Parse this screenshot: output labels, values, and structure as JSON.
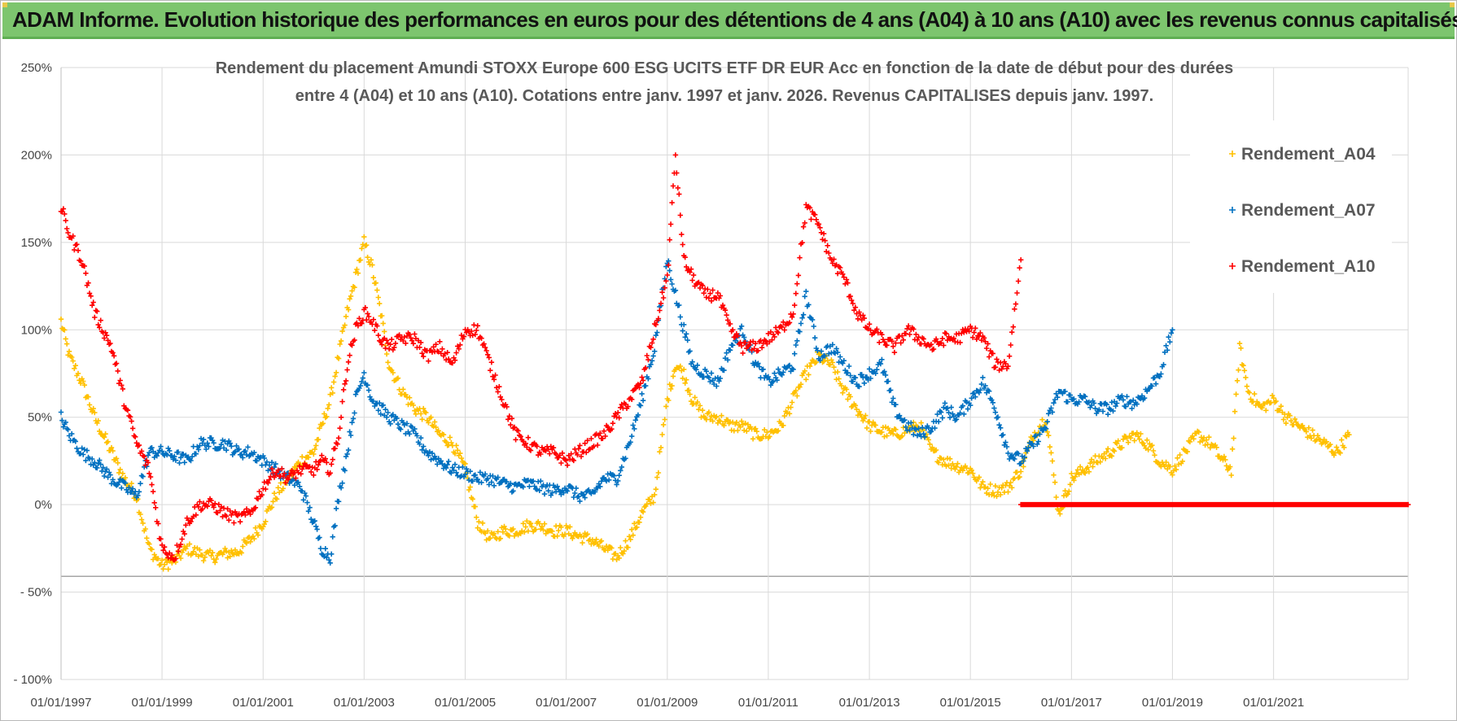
{
  "banner": {
    "title": "ADAM Informe. Evolution historique des performances en euros pour des détentions de 4 ans (A04) à 10 ans (A10) avec les revenus connus capitalisés"
  },
  "colors": {
    "banner_bg": "#7dc56e",
    "A04": "#ffc000",
    "A07": "#0070c0",
    "A10": "#ff0000",
    "grid": "#d9d9d9"
  },
  "chart_data": {
    "type": "scatter",
    "title_line1": "Rendement du placement Amundi STOXX Europe 600 ESG UCITS ETF DR EUR Acc en fonction de la date de début pour des durées",
    "title_line2": "entre 4 (A04) et 10 ans (A10).  Cotations entre janv. 1997 et janv. 2026. Revenus CAPITALISES depuis janv. 1997.",
    "marker": "+",
    "ylim": [
      -100,
      250
    ],
    "xlim": [
      "01/01/1997",
      "2023-09-01"
    ],
    "grid": true,
    "legend_position": "right",
    "y_ticks": [
      {
        "value": 250,
        "label": "250%"
      },
      {
        "value": 200,
        "label": "200%"
      },
      {
        "value": 150,
        "label": "150%"
      },
      {
        "value": 100,
        "label": "100%"
      },
      {
        "value": 50,
        "label": "50%"
      },
      {
        "value": 0,
        "label": "0%"
      },
      {
        "value": -50,
        "label": "- 50%"
      },
      {
        "value": -100,
        "label": "- 100%"
      }
    ],
    "x_ticks": [
      {
        "value": "1997-01-01",
        "label": "01/01/1997"
      },
      {
        "value": "1999-01-01",
        "label": "01/01/1999"
      },
      {
        "value": "2001-01-01",
        "label": "01/01/2001"
      },
      {
        "value": "2003-01-01",
        "label": "01/01/2003"
      },
      {
        "value": "2005-01-01",
        "label": "01/01/2005"
      },
      {
        "value": "2007-01-01",
        "label": "01/01/2007"
      },
      {
        "value": "2009-01-01",
        "label": "01/01/2009"
      },
      {
        "value": "2011-01-01",
        "label": "01/01/2011"
      },
      {
        "value": "2013-01-01",
        "label": "01/01/2013"
      },
      {
        "value": "2015-01-01",
        "label": "01/01/2015"
      },
      {
        "value": "2017-01-01",
        "label": "01/01/2017"
      },
      {
        "value": "2019-01-01",
        "label": "01/01/2019"
      },
      {
        "value": "2021-01-01",
        "label": "01/01/2021"
      }
    ],
    "series": [
      {
        "name": "Rendement_A04",
        "color": "#ffc000",
        "segments": [
          {
            "x": [
              "1997-01-01",
              "1997-03-01",
              "1997-06-01",
              "1997-09-01",
              "1998-01-01",
              "1998-04-01",
              "1998-07-01",
              "1998-10-01",
              "1999-01-01",
              "1999-04-01",
              "1999-07-01",
              "1999-10-01",
              "2000-01-01",
              "2000-04-01",
              "2000-07-01",
              "2000-10-01",
              "2001-01-01",
              "2001-04-01",
              "2001-07-01",
              "2001-10-01",
              "2002-01-01",
              "2002-03-01",
              "2002-05-01",
              "2002-07-01",
              "2002-09-01",
              "2002-11-01",
              "2003-01-01",
              "2003-03-01",
              "2003-05-01",
              "2003-07-01",
              "2003-10-01",
              "2004-01-01",
              "2004-04-01",
              "2004-07-01",
              "2004-10-01",
              "2005-01-01",
              "2005-04-01",
              "2005-07-01",
              "2005-10-01",
              "2006-01-01",
              "2006-04-01",
              "2006-07-01",
              "2006-10-01",
              "2007-01-01",
              "2007-04-01",
              "2007-07-01",
              "2007-10-01",
              "2008-01-01",
              "2008-04-01",
              "2008-07-01",
              "2008-10-01",
              "2009-01-01",
              "2009-03-01",
              "2009-05-01",
              "2009-07-01",
              "2009-10-01",
              "2010-01-01",
              "2010-04-01",
              "2010-07-01",
              "2010-10-01",
              "2011-01-01",
              "2011-04-01",
              "2011-07-01",
              "2011-10-01",
              "2012-01-01",
              "2012-04-01",
              "2012-07-01",
              "2012-10-01",
              "2013-01-01",
              "2013-04-01",
              "2013-07-01",
              "2013-10-01",
              "2014-01-01",
              "2014-04-01",
              "2014-07-01",
              "2014-10-01",
              "2015-01-01",
              "2015-04-01",
              "2015-07-01",
              "2015-10-01",
              "2016-01-01",
              "2016-04-01",
              "2016-07-01",
              "2016-10-01",
              "2017-01-01",
              "2017-04-01",
              "2017-07-01",
              "2017-10-01",
              "2018-01-01",
              "2018-04-01",
              "2018-07-01",
              "2018-10-01",
              "2019-01-01",
              "2019-04-01",
              "2019-07-01",
              "2019-10-01",
              "2020-01-01",
              "2020-03-01",
              "2020-05-01",
              "2020-07-01",
              "2020-10-01",
              "2021-01-01",
              "2021-04-01",
              "2021-07-01",
              "2021-10-01",
              "2022-01-01",
              "2022-04-01",
              "2022-07-01"
            ],
            "y": [
              105,
              85,
              70,
              50,
              30,
              15,
              5,
              -25,
              -35,
              -32,
              -25,
              -28,
              -30,
              -28,
              -27,
              -20,
              -10,
              5,
              15,
              25,
              30,
              45,
              60,
              85,
              110,
              130,
              150,
              135,
              110,
              80,
              65,
              55,
              50,
              40,
              35,
              20,
              -10,
              -20,
              -15,
              -15,
              -12,
              -12,
              -15,
              -15,
              -18,
              -20,
              -25,
              -30,
              -20,
              -5,
              5,
              60,
              80,
              75,
              60,
              50,
              50,
              45,
              45,
              40,
              40,
              45,
              60,
              75,
              85,
              80,
              65,
              55,
              45,
              42,
              40,
              43,
              45,
              30,
              25,
              22,
              20,
              10,
              8,
              10,
              20,
              40,
              50,
              -5,
              15,
              20,
              25,
              30,
              35,
              40,
              35,
              25,
              20,
              30,
              40,
              35,
              25,
              20,
              90,
              65,
              55,
              60,
              50,
              45,
              40,
              35,
              30,
              40
            ]
          }
        ]
      },
      {
        "name": "Rendement_A07",
        "color": "#0070c0",
        "segments": [
          {
            "x": [
              "1997-01-01",
              "1997-03-01",
              "1997-06-01",
              "1997-09-01",
              "1998-01-01",
              "1998-04-01",
              "1998-07-01",
              "1998-10-01",
              "1999-01-01",
              "1999-04-01",
              "1999-07-01",
              "1999-10-01",
              "2000-01-01",
              "2000-04-01",
              "2000-07-01",
              "2000-10-01",
              "2001-01-01",
              "2001-04-01",
              "2001-07-01",
              "2001-10-01",
              "2002-01-01",
              "2002-03-01",
              "2002-05-01",
              "2002-07-01",
              "2002-09-01",
              "2002-11-01",
              "2003-01-01",
              "2003-03-01",
              "2003-05-01",
              "2003-07-01",
              "2003-10-01",
              "2004-01-01",
              "2004-04-01",
              "2004-07-01",
              "2004-10-01",
              "2005-01-01",
              "2005-04-01",
              "2005-07-01",
              "2005-10-01",
              "2006-01-01",
              "2006-04-01",
              "2006-07-01",
              "2006-10-01",
              "2007-01-01",
              "2007-04-01",
              "2007-07-01",
              "2007-10-01",
              "2008-01-01",
              "2008-04-01",
              "2008-07-01",
              "2008-10-01",
              "2009-01-01",
              "2009-03-01",
              "2009-05-01",
              "2009-07-01",
              "2009-10-01",
              "2010-01-01",
              "2010-04-01",
              "2010-07-01",
              "2010-10-01",
              "2011-01-01",
              "2011-04-01",
              "2011-07-01",
              "2011-10-01",
              "2012-01-01",
              "2012-04-01",
              "2012-07-01",
              "2012-10-01",
              "2013-01-01",
              "2013-04-01",
              "2013-07-01",
              "2013-10-01",
              "2014-01-01",
              "2014-04-01",
              "2014-07-01",
              "2014-10-01",
              "2015-01-01",
              "2015-04-01",
              "2015-07-01",
              "2015-10-01",
              "2016-01-01",
              "2016-04-01",
              "2016-07-01",
              "2016-10-01",
              "2017-01-01",
              "2017-04-01",
              "2017-07-01",
              "2017-10-01",
              "2018-01-01",
              "2018-04-01",
              "2018-07-01",
              "2018-10-01",
              "2019-01-01"
            ],
            "y": [
              50,
              40,
              30,
              25,
              15,
              10,
              5,
              30,
              30,
              28,
              25,
              35,
              35,
              35,
              30,
              30,
              25,
              20,
              15,
              10,
              -10,
              -25,
              -30,
              5,
              30,
              60,
              75,
              60,
              55,
              50,
              45,
              40,
              30,
              25,
              20,
              18,
              15,
              15,
              12,
              10,
              12,
              10,
              8,
              10,
              5,
              5,
              15,
              15,
              35,
              60,
              90,
              140,
              120,
              100,
              80,
              75,
              70,
              90,
              100,
              80,
              70,
              75,
              80,
              120,
              85,
              90,
              80,
              70,
              75,
              80,
              55,
              45,
              40,
              45,
              55,
              50,
              60,
              70,
              55,
              30,
              25,
              35,
              45,
              65,
              60,
              60,
              55,
              55,
              60,
              58,
              65,
              75,
              100
            ]
          }
        ]
      },
      {
        "name": "Rendement_A10",
        "color": "#ff0000",
        "segments": [
          {
            "x": [
              "1997-01-01",
              "1997-03-01",
              "1997-06-01",
              "1997-09-01",
              "1998-01-01",
              "1998-04-01",
              "1998-07-01",
              "1998-10-01",
              "1999-01-01",
              "1999-04-01",
              "1999-07-01",
              "1999-10-01",
              "2000-01-01",
              "2000-04-01",
              "2000-07-01",
              "2000-10-01",
              "2001-01-01",
              "2001-04-01",
              "2001-07-01",
              "2001-10-01",
              "2002-01-01",
              "2002-03-01",
              "2002-05-01",
              "2002-07-01",
              "2002-09-01",
              "2002-11-01",
              "2003-01-01",
              "2003-03-01",
              "2003-05-01",
              "2003-07-01",
              "2003-10-01",
              "2004-01-01",
              "2004-04-01",
              "2004-07-01",
              "2004-10-01",
              "2005-01-01",
              "2005-04-01",
              "2005-07-01",
              "2005-10-01",
              "2006-01-01",
              "2006-04-01",
              "2006-07-01",
              "2006-10-01",
              "2007-01-01",
              "2007-04-01",
              "2007-07-01",
              "2007-10-01",
              "2008-01-01",
              "2008-04-01",
              "2008-07-01",
              "2008-10-01",
              "2009-01-01",
              "2009-03-01",
              "2009-05-01",
              "2009-07-01",
              "2009-10-01",
              "2010-01-01",
              "2010-04-01",
              "2010-07-01",
              "2010-10-01",
              "2011-01-01",
              "2011-04-01",
              "2011-07-01",
              "2011-10-01",
              "2012-01-01",
              "2012-04-01",
              "2012-07-01",
              "2012-10-01",
              "2013-01-01",
              "2013-04-01",
              "2013-07-01",
              "2013-10-01",
              "2014-01-01",
              "2014-04-01",
              "2014-07-01",
              "2014-10-01",
              "2015-01-01",
              "2015-04-01",
              "2015-07-01",
              "2015-10-01",
              "2016-01-01"
            ],
            "y": [
              170,
              155,
              140,
              110,
              90,
              60,
              35,
              20,
              -25,
              -30,
              -10,
              0,
              0,
              -5,
              -8,
              -5,
              10,
              20,
              15,
              20,
              20,
              25,
              20,
              40,
              80,
              100,
              110,
              105,
              95,
              90,
              95,
              95,
              85,
              90,
              80,
              100,
              100,
              80,
              60,
              40,
              35,
              30,
              30,
              25,
              30,
              35,
              40,
              50,
              60,
              70,
              100,
              130,
              200,
              140,
              130,
              120,
              120,
              100,
              90,
              90,
              95,
              100,
              110,
              170,
              160,
              140,
              130,
              110,
              100,
              95,
              90,
              100,
              95,
              90,
              95,
              95,
              100,
              95,
              80,
              80,
              140
            ]
          },
          {
            "x": [
              "2016-01-01",
              "2023-09-01"
            ],
            "y": [
              0,
              0
            ]
          }
        ]
      }
    ]
  }
}
